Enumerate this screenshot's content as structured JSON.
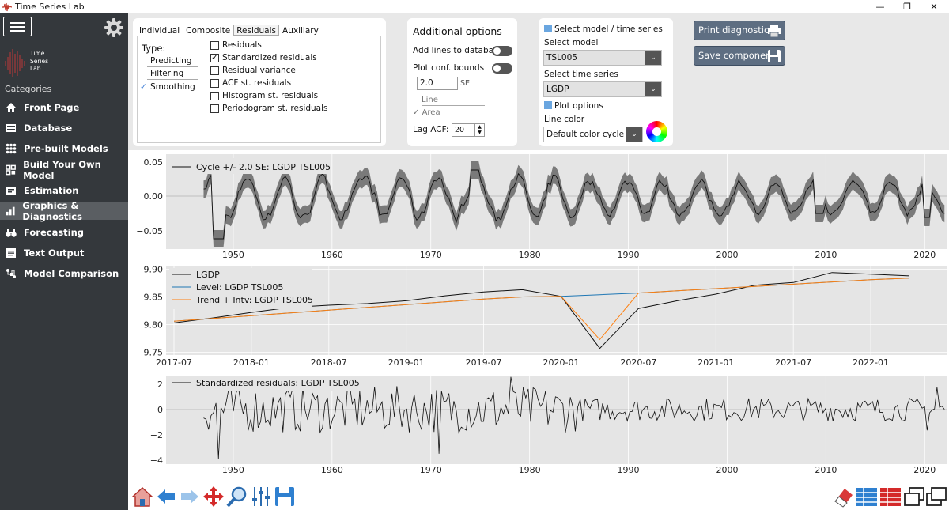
{
  "window": {
    "title": "Time Series Lab",
    "minimize_glyph": "—",
    "restore_glyph": "❐",
    "close_glyph": "✕"
  },
  "sidebar": {
    "logo_lines": [
      "Time",
      "Series",
      "Lab"
    ],
    "categories_label": "Categories",
    "items": [
      {
        "label": "Front Page",
        "icon": "home-icon",
        "active": false
      },
      {
        "label": "Database",
        "icon": "database-icon",
        "active": false
      },
      {
        "label": "Pre-built Models",
        "icon": "grid-icon",
        "active": false
      },
      {
        "label": "Build Your Own Model",
        "icon": "blocks-icon",
        "active": false
      },
      {
        "label": "Estimation",
        "icon": "estimation-icon",
        "active": false
      },
      {
        "label": "Graphics & Diagnostics",
        "icon": "chart-icon",
        "active": true
      },
      {
        "label": "Forecasting",
        "icon": "binoculars-icon",
        "active": false
      },
      {
        "label": "Text Output",
        "icon": "text-icon",
        "active": false
      },
      {
        "label": "Model Comparison",
        "icon": "compare-icon",
        "active": false
      }
    ]
  },
  "plot_type_panel": {
    "tabs": [
      "Individual",
      "Composite",
      "Residuals",
      "Auxiliary"
    ],
    "active_tab": "Residuals",
    "type_label": "Type:",
    "type_options": [
      {
        "label": "Predicting",
        "checked": false
      },
      {
        "label": "Filtering",
        "checked": false
      },
      {
        "label": "Smoothing",
        "checked": true
      }
    ],
    "residual_options": [
      {
        "label": "Residuals",
        "checked": false
      },
      {
        "label": "Standardized residuals",
        "checked": true
      },
      {
        "label": "Residual variance",
        "checked": false
      },
      {
        "label": "ACF st. residuals",
        "checked": false
      },
      {
        "label": "Histogram st. residuals",
        "checked": false
      },
      {
        "label": "Periodogram st. residuals",
        "checked": false
      }
    ]
  },
  "additional_options": {
    "title": "Additional options",
    "add_lines_label": "Add lines to database",
    "plot_conf_label": "Plot conf. bounds",
    "se_value": "2.0",
    "se_unit": "SE",
    "line_label": "Line",
    "area_label": "Area",
    "lag_acf_label": "Lag ACF:",
    "lag_acf_value": "20"
  },
  "model_panel": {
    "header": "Select model / time series",
    "select_model_label": "Select model",
    "model_value": "TSL005",
    "select_series_label": "Select time series",
    "series_value": "LGDP",
    "plot_options_label": "Plot options",
    "line_color_label": "Line color",
    "line_color_value": "Default color cycle"
  },
  "actions": {
    "print_label": "Print diagnostics",
    "save_label": "Save components"
  },
  "charts": {
    "cycle": {
      "legend": "Cycle +/- 2.0 SE: LGDP TSL005",
      "y_ticks": [
        "0.05",
        "0.00",
        "−0.05"
      ],
      "x_ticks": [
        "1950",
        "1960",
        "1970",
        "1980",
        "1990",
        "2000",
        "2010",
        "2020"
      ]
    },
    "level": {
      "legend": [
        "LGDP",
        "Level: LGDP TSL005",
        "Trend + Intv: LGDP TSL005"
      ],
      "y_ticks": [
        "9.90",
        "9.85",
        "9.80",
        "9.75"
      ],
      "x_ticks": [
        "2017-07",
        "2018-01",
        "2018-07",
        "2019-01",
        "2019-07",
        "2020-01",
        "2020-07",
        "2021-01",
        "2021-07",
        "2022-01"
      ]
    },
    "resid": {
      "legend": "Standardized residuals: LGDP TSL005",
      "y_ticks": [
        "2",
        "0",
        "−2",
        "−4"
      ],
      "x_ticks": [
        "1950",
        "1960",
        "1970",
        "1980",
        "1990",
        "2000",
        "2010",
        "2020"
      ]
    }
  },
  "chart_data": [
    {
      "type": "line",
      "title": "",
      "series": [
        {
          "name": "Cycle +/- 2.0 SE: LGDP TSL005"
        }
      ],
      "x_range": [
        1947,
        2022
      ],
      "ylim": [
        -0.065,
        0.055
      ]
    },
    {
      "type": "line",
      "x": [
        "2017-07",
        "2017-10",
        "2018-01",
        "2018-04",
        "2018-07",
        "2018-10",
        "2019-01",
        "2019-04",
        "2019-07",
        "2019-10",
        "2020-01",
        "2020-04",
        "2020-07",
        "2020-10",
        "2021-01",
        "2021-04",
        "2021-07",
        "2021-10",
        "2022-01",
        "2022-04"
      ],
      "series": [
        {
          "name": "LGDP",
          "values": [
            9.803,
            9.812,
            9.822,
            9.831,
            9.835,
            9.838,
            9.843,
            9.852,
            9.859,
            9.863,
            9.851,
            9.757,
            9.829,
            9.843,
            9.855,
            9.871,
            9.876,
            9.894,
            9.891,
            9.888
          ]
        },
        {
          "name": "Level: LGDP TSL005",
          "values": [
            9.806,
            9.811,
            9.816,
            9.821,
            9.826,
            9.831,
            9.836,
            9.841,
            9.846,
            9.85,
            9.851,
            9.854,
            9.857,
            9.861,
            9.865,
            9.869,
            9.873,
            9.877,
            9.881,
            9.884
          ]
        },
        {
          "name": "Trend + Intv: LGDP TSL005",
          "values": [
            9.806,
            9.811,
            9.816,
            9.821,
            9.826,
            9.831,
            9.836,
            9.841,
            9.846,
            9.85,
            9.851,
            9.773,
            9.857,
            9.861,
            9.865,
            9.869,
            9.873,
            9.877,
            9.881,
            9.884
          ]
        }
      ],
      "ylim": [
        9.745,
        9.905
      ]
    },
    {
      "type": "line",
      "series": [
        {
          "name": "Standardized residuals: LGDP TSL005"
        }
      ],
      "x_range": [
        1947,
        2022
      ],
      "ylim": [
        -4.2,
        2.6
      ]
    }
  ]
}
